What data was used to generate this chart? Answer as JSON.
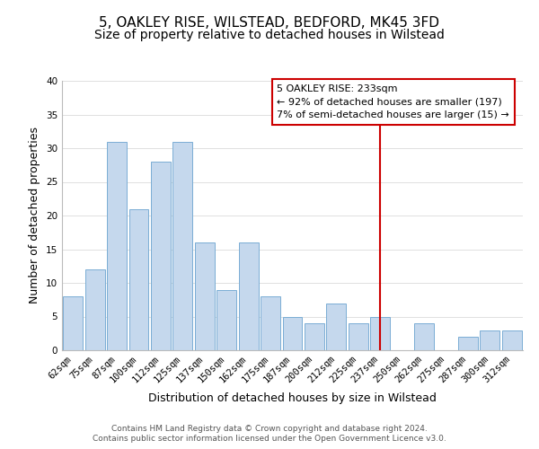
{
  "title": "5, OAKLEY RISE, WILSTEAD, BEDFORD, MK45 3FD",
  "subtitle": "Size of property relative to detached houses in Wilstead",
  "xlabel": "Distribution of detached houses by size in Wilstead",
  "ylabel": "Number of detached properties",
  "bar_labels": [
    "62sqm",
    "75sqm",
    "87sqm",
    "100sqm",
    "112sqm",
    "125sqm",
    "137sqm",
    "150sqm",
    "162sqm",
    "175sqm",
    "187sqm",
    "200sqm",
    "212sqm",
    "225sqm",
    "237sqm",
    "250sqm",
    "262sqm",
    "275sqm",
    "287sqm",
    "300sqm",
    "312sqm"
  ],
  "bar_values": [
    8,
    12,
    31,
    21,
    28,
    31,
    16,
    9,
    16,
    8,
    5,
    4,
    7,
    4,
    5,
    0,
    4,
    0,
    2,
    3,
    3
  ],
  "bar_color": "#c5d8ed",
  "bar_edge_color": "#7aadd4",
  "marker_line_x_label": "237sqm",
  "marker_line_color": "#cc0000",
  "annotation_title": "5 OAKLEY RISE: 233sqm",
  "annotation_line1": "← 92% of detached houses are smaller (197)",
  "annotation_line2": "7% of semi-detached houses are larger (15) →",
  "annotation_box_edge_color": "#cc0000",
  "annotation_box_bg": "#ffffff",
  "ylim": [
    0,
    40
  ],
  "footer_line1": "Contains HM Land Registry data © Crown copyright and database right 2024.",
  "footer_line2": "Contains public sector information licensed under the Open Government Licence v3.0.",
  "bg_color": "#ffffff",
  "grid_color": "#e0e0e0",
  "title_fontsize": 11,
  "subtitle_fontsize": 10,
  "axis_label_fontsize": 9,
  "tick_fontsize": 7.5,
  "annotation_fontsize": 8,
  "footer_fontsize": 6.5
}
